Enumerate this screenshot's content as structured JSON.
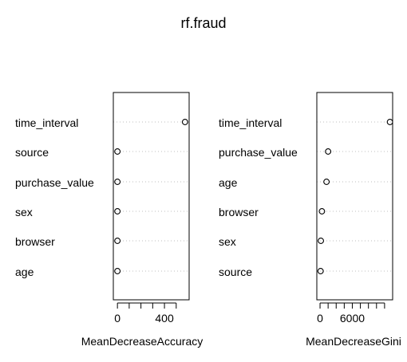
{
  "title": "rf.fraud",
  "chart_data": [
    {
      "type": "scatter",
      "subtype": "dotchart",
      "xlabel": "MeanDecreaseAccuracy",
      "ylabel": "",
      "categories": [
        "time_interval",
        "source",
        "purchase_value",
        "sex",
        "browser",
        "age"
      ],
      "values": [
        575,
        0,
        0,
        0,
        0,
        0
      ],
      "xlim": [
        -35,
        610
      ],
      "xticks": [
        0,
        100,
        200,
        300,
        400,
        500
      ],
      "xtick_labels": [
        "0",
        "",
        "",
        "",
        "400",
        ""
      ],
      "grid": "dotted horizontal guides"
    },
    {
      "type": "scatter",
      "subtype": "dotchart",
      "xlabel": "MeanDecreaseGini",
      "ylabel": "",
      "categories": [
        "time_interval",
        "purchase_value",
        "age",
        "browser",
        "sex",
        "source"
      ],
      "values": [
        13000,
        1500,
        1200,
        350,
        150,
        100
      ],
      "xlim": [
        -600,
        13500
      ],
      "xticks": [
        0,
        1500,
        3000,
        4500,
        6000,
        7500,
        9000,
        10500,
        12000
      ],
      "xtick_labels": [
        "0",
        "",
        "",
        "",
        "6000",
        "",
        "",
        "",
        ""
      ],
      "grid": "dotted horizontal guides"
    }
  ]
}
